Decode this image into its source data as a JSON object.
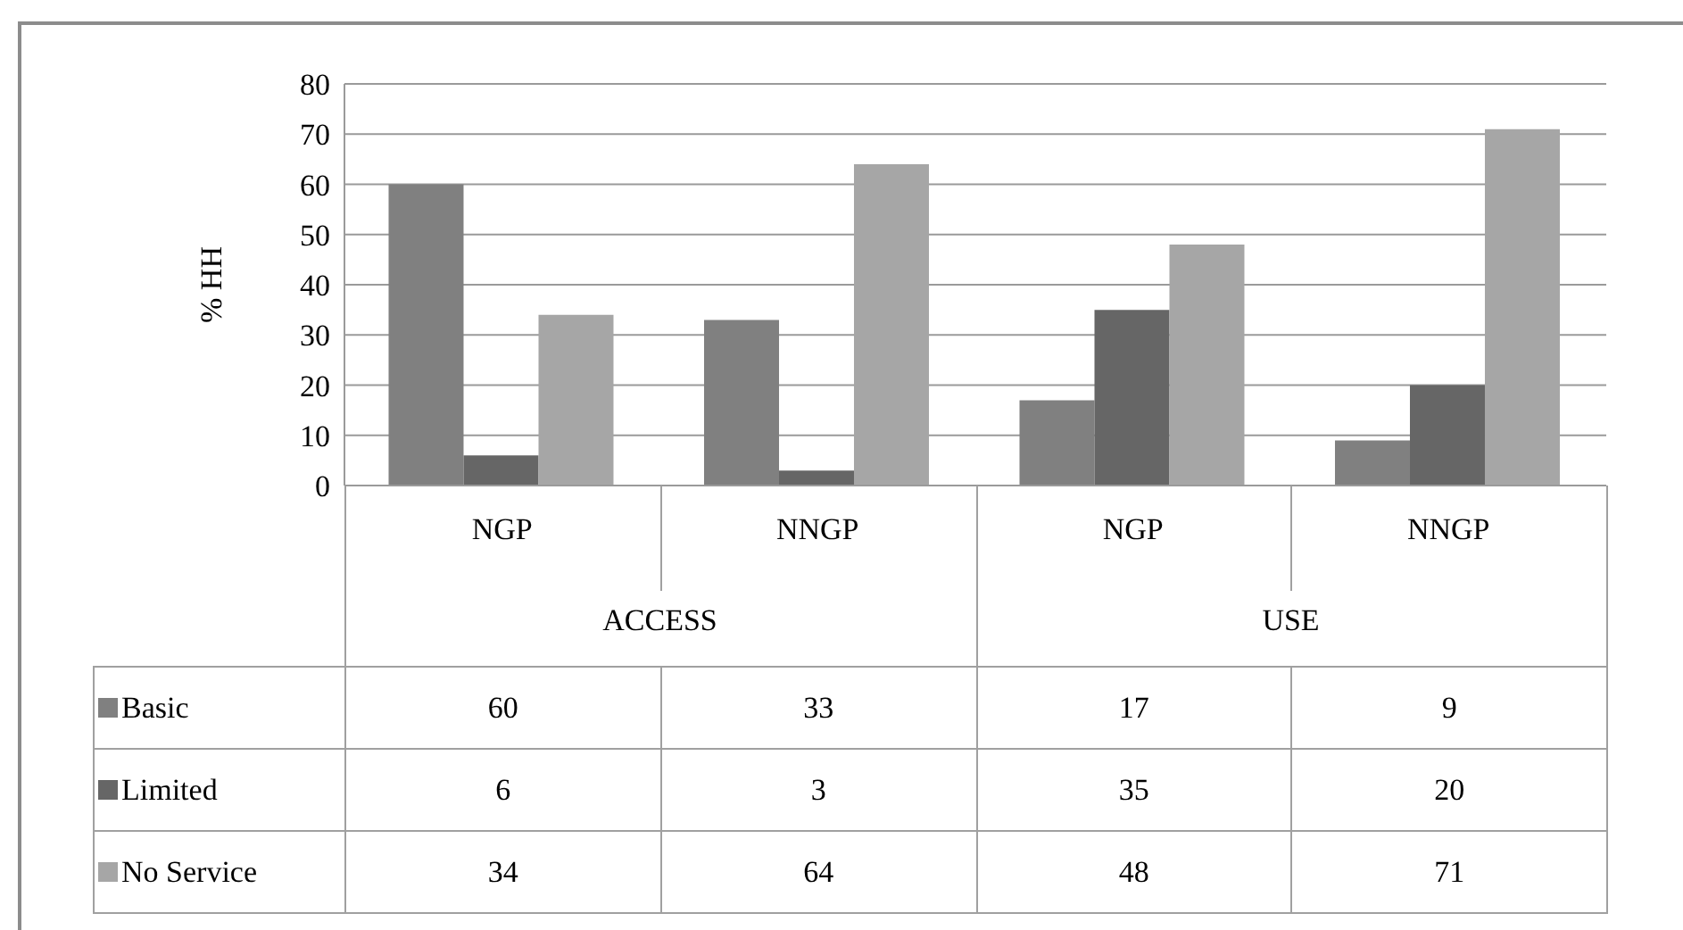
{
  "chart_data": {
    "type": "bar",
    "ylabel": "% HH",
    "categories": [
      "NGP",
      "NNGP",
      "NGP",
      "NNGP"
    ],
    "annotations": [
      "ACCESS",
      "USE"
    ],
    "series": [
      {
        "name": "Basic",
        "color": "#808080",
        "values": [
          60,
          33,
          17,
          9
        ]
      },
      {
        "name": "Limited",
        "color": "#666666",
        "values": [
          6,
          3,
          35,
          20
        ]
      },
      {
        "name": "No Service",
        "color": "#a6a6a6",
        "values": [
          34,
          64,
          48,
          71
        ]
      }
    ],
    "ylim": [
      0,
      80
    ],
    "yticks": [
      0,
      10,
      20,
      30,
      40,
      50,
      60,
      70,
      80
    ],
    "grid": "y",
    "legend": "bottom",
    "data_labels": true
  }
}
